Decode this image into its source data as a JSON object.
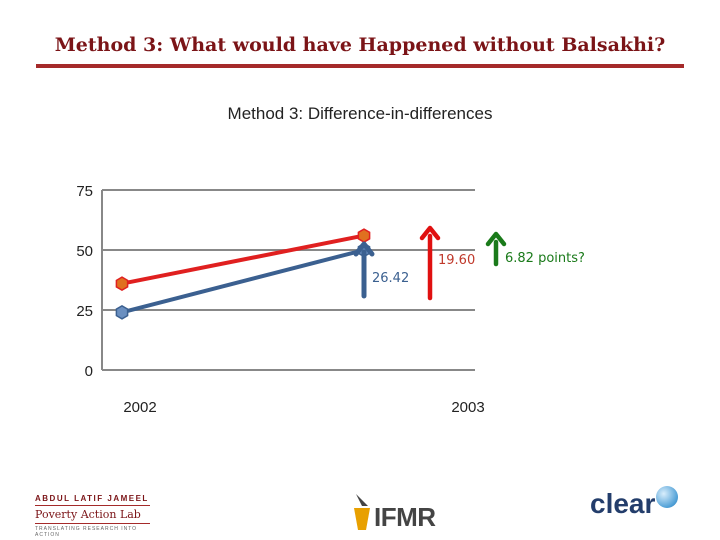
{
  "slide": {
    "title": "Method 3: What would have Happened without Balsakhi?"
  },
  "colors": {
    "title": "#7b1417",
    "treatment": "#e02020",
    "comparison": "#3b6090",
    "gap_arrow": "#e01010",
    "extra_arrow": "#1a7a1a",
    "annotation_red": "#c0392b",
    "annotation_blue": "#3b6090",
    "annotation_green": "#1a7a1a"
  },
  "chart_data": {
    "type": "line",
    "title": "Method 3: Difference-in-differences",
    "categories": [
      "2002",
      "2003"
    ],
    "yticks": [
      0,
      25,
      50,
      75
    ],
    "ylim": [
      0,
      75
    ],
    "grid": true,
    "series": [
      {
        "values": [
          36,
          56
        ],
        "color": "#e02020",
        "marker": "#e07020"
      },
      {
        "values": [
          24,
          50
        ],
        "color": "#3b6090",
        "marker": "#6a8fc0"
      }
    ],
    "annotations": [
      {
        "text": "26.42",
        "color": "#3b6090"
      },
      {
        "text": "19.60",
        "color": "#c0392b"
      },
      {
        "text": "6.82  points?",
        "color": "#1a7a1a"
      }
    ]
  },
  "logos": {
    "jpal_line1": "ABDUL LATIF JAMEEL",
    "jpal_line2": "Poverty Action Lab",
    "jpal_line3": "TRANSLATING RESEARCH INTO ACTION",
    "ifmr": "IFMR",
    "clear": "clear"
  }
}
